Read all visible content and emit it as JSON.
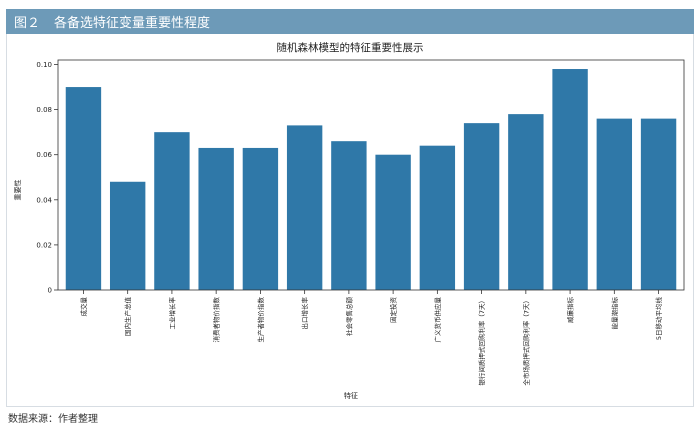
{
  "figure": {
    "label": "图２",
    "title": "各备选特征变量重要性程度",
    "source": "数据来源：作者整理"
  },
  "colors": {
    "header_bg": "#6d9ab8",
    "bar": "#2f78a8",
    "axis": "#333333"
  },
  "chart_data": {
    "type": "bar",
    "title": "随机森林模型的特征重要性展示",
    "xlabel": "特征",
    "ylabel": "重要性",
    "ylim": [
      0,
      0.102
    ],
    "yticks": [
      0,
      0.02,
      0.04,
      0.06,
      0.08,
      0.1
    ],
    "ytick_labels": [
      "0",
      "0.02",
      "0.04",
      "0.06",
      "0.08",
      "0.10"
    ],
    "categories": [
      "成交量",
      "国内生产总值",
      "工业增长率",
      "消费者物价指数",
      "生产者物价指数",
      "出口增长率",
      "社会零售总额",
      "固定投资",
      "广义货币供应量",
      "银行间质押式回购利率（7天）",
      "全市场质押式回购利率（7天）",
      "威廉指标",
      "能量潮指标",
      "5日移动平均线"
    ],
    "values": [
      0.09,
      0.048,
      0.07,
      0.063,
      0.063,
      0.073,
      0.066,
      0.06,
      0.064,
      0.074,
      0.078,
      0.098,
      0.076,
      0.076
    ]
  }
}
